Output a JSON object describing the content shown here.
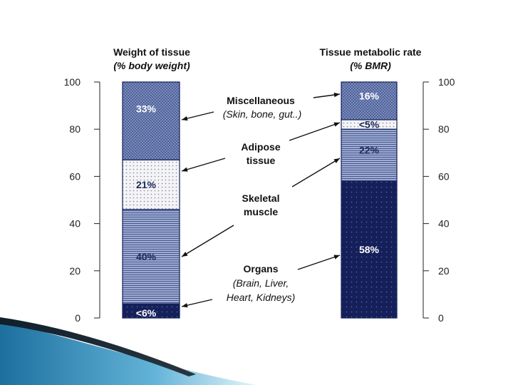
{
  "chart_data": {
    "type": "bar",
    "subtype": "stacked-100",
    "categories": [
      "Weight of tissue (% body weight)",
      "Tissue metabolic rate (% BMR)"
    ],
    "column_titles": [
      {
        "line1": "Weight of tissue",
        "line2": "(% body weight)"
      },
      {
        "line1": "Tissue metabolic rate",
        "line2": "(% BMR)"
      }
    ],
    "series": [
      {
        "key": "organs",
        "values": [
          6,
          58
        ],
        "labels": [
          "<6%",
          "58%"
        ]
      },
      {
        "key": "skeletal",
        "values": [
          40,
          22
        ],
        "labels": [
          "40%",
          "22%"
        ]
      },
      {
        "key": "adipose",
        "values": [
          21,
          4
        ],
        "labels": [
          "21%",
          "<5%"
        ]
      },
      {
        "key": "misc",
        "values": [
          33,
          16
        ],
        "labels": [
          "33%",
          "16%"
        ]
      }
    ],
    "legend_labels": [
      {
        "key": "misc",
        "title": "Miscellaneous",
        "sub": "(Skin, bone, gut..)"
      },
      {
        "key": "adipose",
        "title": "Adipose",
        "title2": "tissue"
      },
      {
        "key": "skeletal",
        "title": "Skeletal",
        "title2": "muscle"
      },
      {
        "key": "organs",
        "title": "Organs",
        "sub": "(Brain, Liver,",
        "sub2": "Heart, Kidneys)"
      }
    ],
    "yticks": [
      "0",
      "20",
      "40",
      "60",
      "80",
      "100"
    ],
    "ylim": [
      0,
      100
    ],
    "colors": {
      "organs": "#15205a",
      "skeletal": "#7686b4",
      "adipose": "#e6e6ec",
      "misc": "#465a94"
    }
  }
}
